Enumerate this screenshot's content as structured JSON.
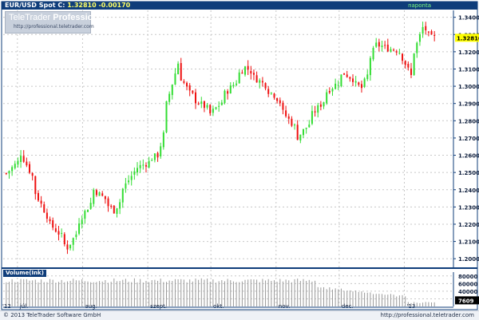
{
  "header": {
    "instrument": "EUR/USD Spot",
    "last_label": "C:",
    "last_value": "1.32810",
    "change": "-0.00170",
    "period": "naponta"
  },
  "watermark": {
    "brand_plain": "TeleTrader",
    "brand_bold": "Professional",
    "url": "http://professional.teletrader.com"
  },
  "volume": {
    "label": "Volume(Ink)"
  },
  "footer": {
    "copyright": "© 2013 TeleTrader Software GmbH",
    "url": "http://professional.teletrader.com"
  },
  "colors": {
    "up": "#33dd33",
    "down": "#ee1111",
    "axis": "#0f3d7a",
    "grid": "#c8c8c8",
    "last_badge": "#ffff00",
    "volume_bars": "#999999"
  },
  "chart_data": [
    {
      "type": "candlestick",
      "title": "EUR/USD Spot",
      "xlabel": "",
      "ylabel": "",
      "y_ticks": [
        "1.20000",
        "1.21000",
        "1.22000",
        "1.23000",
        "1.24000",
        "1.25000",
        "1.26000",
        "1.27000",
        "1.28000",
        "1.29000",
        "1.30000",
        "1.31000",
        "1.32000",
        "1.33000",
        "1.34000"
      ],
      "ylim": [
        1.195,
        1.344
      ],
      "x_tick_labels": [
        "'12",
        "júl.",
        "aug.",
        "szept.",
        "okt.",
        "nov.",
        "dec.",
        "'13"
      ],
      "x_tick_dates": [
        "2012-06-26",
        "2012-07-01",
        "2012-08-01",
        "2012-09-01",
        "2012-10-01",
        "2012-11-01",
        "2012-12-01",
        "2013-01-01"
      ],
      "x_range": [
        "2012-06-25",
        "2013-01-16"
      ],
      "grid": true,
      "last_value_label": "1.32810",
      "ohlc_key_closes": [
        {
          "date": "2012-06-25",
          "close": 1.2495
        },
        {
          "date": "2012-07-02",
          "close": 1.261
        },
        {
          "date": "2012-07-13",
          "close": 1.225
        },
        {
          "date": "2012-07-24",
          "close": 1.2065
        },
        {
          "date": "2012-08-06",
          "close": 1.24
        },
        {
          "date": "2012-08-15",
          "close": 1.228
        },
        {
          "date": "2012-08-24",
          "close": 1.2505
        },
        {
          "date": "2012-09-05",
          "close": 1.26
        },
        {
          "date": "2012-09-14",
          "close": 1.3135
        },
        {
          "date": "2012-09-20",
          "close": 1.296
        },
        {
          "date": "2012-10-01",
          "close": 1.284
        },
        {
          "date": "2012-10-17",
          "close": 1.311
        },
        {
          "date": "2012-10-31",
          "close": 1.295
        },
        {
          "date": "2012-11-12",
          "close": 1.2705
        },
        {
          "date": "2012-11-26",
          "close": 1.297
        },
        {
          "date": "2012-12-04",
          "close": 1.3075
        },
        {
          "date": "2012-12-12",
          "close": 1.299
        },
        {
          "date": "2012-12-19",
          "close": 1.324
        },
        {
          "date": "2012-12-31",
          "close": 1.32
        },
        {
          "date": "2013-01-04",
          "close": 1.306
        },
        {
          "date": "2013-01-10",
          "close": 1.334
        },
        {
          "date": "2013-01-15",
          "close": 1.3281
        }
      ]
    },
    {
      "type": "bar",
      "title": "Volume(Ink)",
      "y_ticks": [
        "80000",
        "60000",
        "40000",
        "20000"
      ],
      "ylim": [
        0,
        90000
      ],
      "last_value_label": "7609",
      "values_note": ""
    }
  ]
}
